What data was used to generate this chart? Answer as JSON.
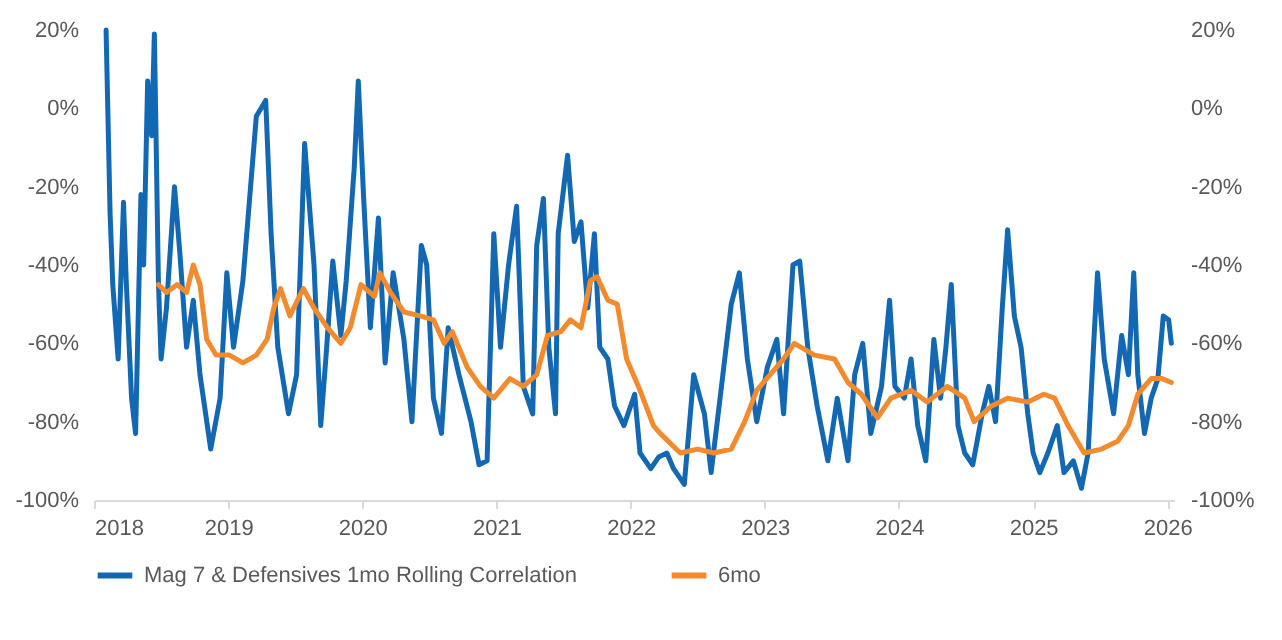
{
  "chart_data": {
    "type": "line",
    "series": [
      {
        "name": "Mag 7 & Defensives 1mo Rolling Correlation",
        "color": "#1368b3",
        "x": [
          2018.09,
          2018.12,
          2018.14,
          2018.18,
          2018.22,
          2018.24,
          2018.28,
          2018.31,
          2018.35,
          2018.37,
          2018.4,
          2018.43,
          2018.45,
          2018.48,
          2018.5,
          2018.54,
          2018.6,
          2018.64,
          2018.69,
          2018.74,
          2018.79,
          2018.87,
          2018.94,
          2018.99,
          2019.04,
          2019.11,
          2019.16,
          2019.21,
          2019.28,
          2019.32,
          2019.37,
          2019.45,
          2019.51,
          2019.57,
          2019.64,
          2019.69,
          2019.73,
          2019.78,
          2019.84,
          2019.88,
          2019.94,
          2019.97,
          2020.01,
          2020.06,
          2020.12,
          2020.17,
          2020.23,
          2020.31,
          2020.37,
          2020.44,
          2020.48,
          2020.53,
          2020.59,
          2020.64,
          2020.72,
          2020.81,
          2020.87,
          2020.93,
          2020.98,
          2021.03,
          2021.09,
          2021.15,
          2021.2,
          2021.27,
          2021.3,
          2021.35,
          2021.39,
          2021.44,
          2021.46,
          2021.53,
          2021.58,
          2021.63,
          2021.68,
          2021.73,
          2021.77,
          2021.83,
          2021.88,
          2021.95,
          2022.03,
          2022.07,
          2022.15,
          2022.21,
          2022.27,
          2022.32,
          2022.4,
          2022.47,
          2022.55,
          2022.6,
          2022.67,
          2022.75,
          2022.81,
          2022.87,
          2022.94,
          2023.02,
          2023.09,
          2023.14,
          2023.21,
          2023.26,
          2023.32,
          2023.39,
          2023.47,
          2023.54,
          2023.62,
          2023.67,
          2023.73,
          2023.79,
          2023.87,
          2023.93,
          2023.97,
          2024.04,
          2024.09,
          2024.14,
          2024.2,
          2024.26,
          2024.31,
          2024.35,
          2024.39,
          2024.44,
          2024.49,
          2024.55,
          2024.62,
          2024.67,
          2024.72,
          2024.77,
          2024.81,
          2024.86,
          2024.91,
          2024.96,
          2025.0,
          2025.05,
          2025.11,
          2025.18,
          2025.23,
          2025.3,
          2025.36,
          2025.41,
          2025.45,
          2025.48,
          2025.53,
          2025.6,
          2025.66,
          2025.71,
          2025.75,
          2025.78,
          2025.83,
          2025.88,
          2025.93,
          2025.97,
          2026.01,
          2026.03
        ],
        "values": [
          20,
          -27,
          -45,
          -64,
          -24,
          -44,
          -74,
          -83,
          -22,
          -40,
          7,
          -7,
          19,
          -44,
          -64,
          -51,
          -20,
          -37,
          -61,
          -49,
          -68,
          -87,
          -74,
          -42,
          -61,
          -44,
          -23,
          -2,
          2,
          -32,
          -61,
          -78,
          -68,
          -9,
          -40,
          -81,
          -63,
          -39,
          -58,
          -44,
          -15,
          7,
          -23,
          -56,
          -28,
          -65,
          -42,
          -59,
          -80,
          -35,
          -40,
          -74,
          -83,
          -56,
          -68,
          -80,
          -91,
          -90,
          -32,
          -61,
          -40,
          -25,
          -71,
          -78,
          -35,
          -23,
          -61,
          -78,
          -32,
          -12,
          -34,
          -29,
          -51,
          -32,
          -61,
          -64,
          -76,
          -81,
          -73,
          -88,
          -92,
          -89,
          -88,
          -92,
          -96,
          -68,
          -78,
          -93,
          -73,
          -50,
          -42,
          -64,
          -80,
          -66,
          -59,
          -78,
          -40,
          -39,
          -61,
          -76,
          -90,
          -74,
          -90,
          -68,
          -60,
          -83,
          -71,
          -49,
          -71,
          -74,
          -64,
          -81,
          -90,
          -59,
          -74,
          -61,
          -45,
          -81,
          -88,
          -91,
          -78,
          -71,
          -80,
          -51,
          -31,
          -53,
          -61,
          -78,
          -88,
          -93,
          -88,
          -81,
          -93,
          -90,
          -97,
          -88,
          -61,
          -42,
          -64,
          -78,
          -58,
          -68,
          -42,
          -68,
          -83,
          -74,
          -69,
          -53,
          -54,
          -60
        ]
      },
      {
        "name": "6mo",
        "color": "#f28a2e",
        "x": [
          2018.48,
          2018.54,
          2018.62,
          2018.69,
          2018.74,
          2018.79,
          2018.84,
          2018.91,
          2019.01,
          2019.11,
          2019.21,
          2019.29,
          2019.34,
          2019.39,
          2019.46,
          2019.56,
          2019.64,
          2019.74,
          2019.84,
          2019.91,
          2019.99,
          2020.09,
          2020.13,
          2020.21,
          2020.31,
          2020.43,
          2020.53,
          2020.61,
          2020.67,
          2020.78,
          2020.88,
          2020.98,
          2021.1,
          2021.2,
          2021.3,
          2021.38,
          2021.48,
          2021.55,
          2021.63,
          2021.7,
          2021.75,
          2021.83,
          2021.9,
          2021.97,
          2022.07,
          2022.17,
          2022.22,
          2022.37,
          2022.5,
          2022.62,
          2022.75,
          2022.85,
          2022.94,
          2023.04,
          2023.14,
          2023.22,
          2023.37,
          2023.52,
          2023.62,
          2023.72,
          2023.84,
          2023.94,
          2024.09,
          2024.21,
          2024.36,
          2024.49,
          2024.56,
          2024.69,
          2024.81,
          2024.96,
          2025.08,
          2025.16,
          2025.26,
          2025.38,
          2025.51,
          2025.63,
          2025.71,
          2025.78,
          2025.88,
          2025.96,
          2026.03
        ],
        "values": [
          -45,
          -47,
          -45,
          -47,
          -40,
          -45,
          -59,
          -63,
          -63,
          -65,
          -63,
          -59,
          -51,
          -46,
          -53,
          -46,
          -51,
          -56,
          -60,
          -56,
          -45,
          -48,
          -42,
          -47,
          -52,
          -53,
          -54,
          -60,
          -57,
          -66,
          -71,
          -74,
          -69,
          -71,
          -68,
          -58,
          -57,
          -54,
          -56,
          -44,
          -43,
          -49,
          -50,
          -64,
          -72,
          -81,
          -83,
          -88,
          -87,
          -88,
          -87,
          -80,
          -72,
          -68,
          -64,
          -60,
          -63,
          -64,
          -70,
          -73,
          -79,
          -74,
          -72,
          -75,
          -71,
          -74,
          -80,
          -76,
          -74,
          -75,
          -73,
          -74,
          -81,
          -88,
          -87,
          -85,
          -81,
          -73,
          -69,
          -69,
          -70
        ]
      }
    ],
    "xlim": [
      2018,
      2026.05
    ],
    "xticks": [
      2018,
      2019,
      2020,
      2021,
      2022,
      2023,
      2024,
      2025,
      2026
    ],
    "ylim": [
      -100,
      20
    ],
    "yticks": [
      {
        "value": -100,
        "label": "-100%"
      },
      {
        "value": -80,
        "label": "-80%"
      },
      {
        "value": -60,
        "label": "-60%"
      },
      {
        "value": -40,
        "label": "-40%"
      },
      {
        "value": -20,
        "label": "-20%"
      },
      {
        "value": 0,
        "label": "0%"
      },
      {
        "value": 20,
        "label": "20%"
      }
    ],
    "y2lim": [
      -100,
      20
    ],
    "y2ticks": [
      {
        "value": -100,
        "label": "-100%"
      },
      {
        "value": -80,
        "label": "-80%"
      },
      {
        "value": -60,
        "label": "-60%"
      },
      {
        "value": -40,
        "label": "-40%"
      },
      {
        "value": -20,
        "label": "-20%"
      },
      {
        "value": 0,
        "label": "0%"
      },
      {
        "value": 20,
        "label": "20%"
      }
    ],
    "legend": "bottom",
    "grid": false,
    "marker": "none",
    "line_style": "solid"
  }
}
